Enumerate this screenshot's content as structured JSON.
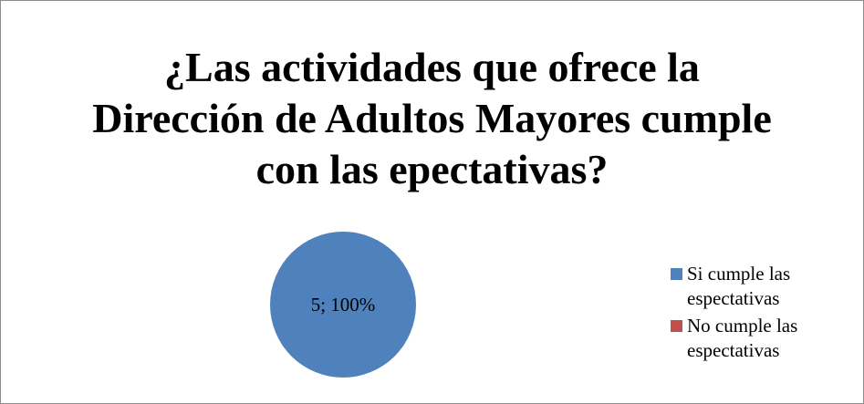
{
  "chart_data": {
    "type": "pie",
    "title": "¿Las actividades que ofrece la Dirección de Adultos Mayores cumple con las epectativas?",
    "categories": [
      "Si cumple las espectativas",
      "No cumple las espectativas"
    ],
    "values": [
      5,
      0
    ],
    "value_labels": [
      "5; 100%",
      null
    ],
    "colors": [
      "#4f81bd",
      "#c0504d"
    ],
    "legend": "right"
  }
}
